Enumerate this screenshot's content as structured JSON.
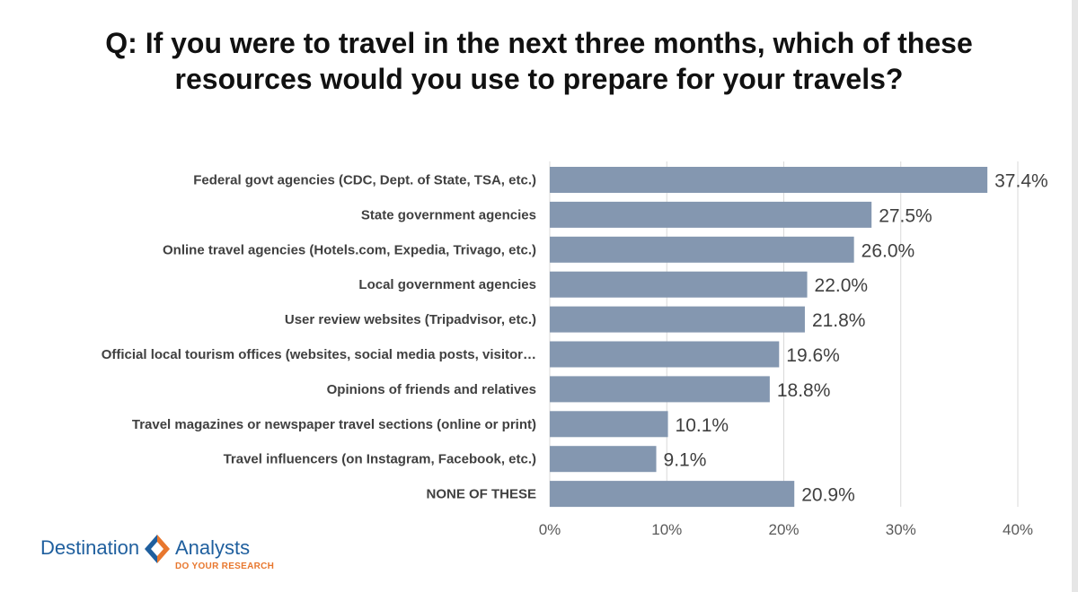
{
  "title": "Q: If you were to travel in the next three months, which of these resources would you use to prepare for your travels?",
  "logo": {
    "left_word": "Destination",
    "right_word": "Analysts",
    "tagline": "DO YOUR RESEARCH",
    "colors": {
      "blue": "#1f5f9e",
      "orange": "#e8772e"
    }
  },
  "chart_data": {
    "type": "bar",
    "orientation": "horizontal",
    "categories": [
      "Federal govt agencies (CDC, Dept. of State, TSA, etc.)",
      "State government agencies",
      "Online travel agencies (Hotels.com, Expedia, Trivago, etc.)",
      "Local government agencies",
      "User review websites (Tripadvisor, etc.)",
      "Official local tourism offices (websites, social media posts, visitor…",
      "Opinions of friends and relatives",
      "Travel magazines or newspaper travel sections (online or print)",
      "Travel influencers (on Instagram, Facebook, etc.)",
      "NONE OF THESE"
    ],
    "values": [
      37.4,
      27.5,
      26.0,
      22.0,
      21.8,
      19.6,
      18.8,
      10.1,
      9.1,
      20.9
    ],
    "value_labels": [
      "37.4%",
      "27.5%",
      "26.0%",
      "22.0%",
      "21.8%",
      "19.6%",
      "18.8%",
      "10.1%",
      "9.1%",
      "20.9%"
    ],
    "xlim": [
      0,
      40
    ],
    "x_ticks": [
      0,
      10,
      20,
      30,
      40
    ],
    "x_tick_labels": [
      "0%",
      "10%",
      "20%",
      "30%",
      "40%"
    ],
    "grid": true,
    "bar_color": "#8497b0",
    "grid_color": "#d9d9d9",
    "xlabel": "",
    "ylabel": ""
  }
}
